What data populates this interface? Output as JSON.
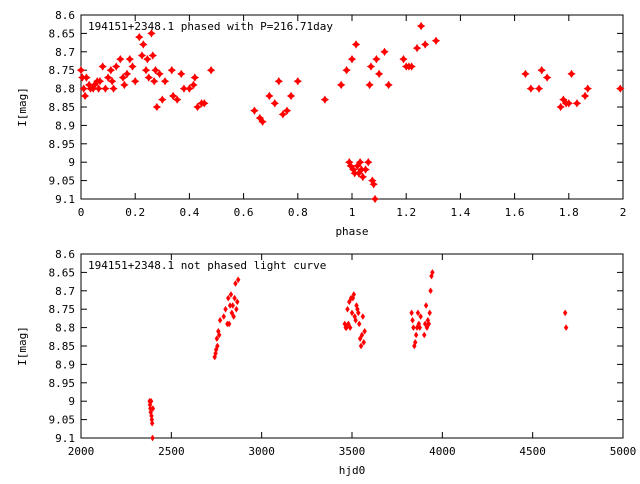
{
  "chart_data": [
    {
      "type": "scatter",
      "title": "194151+2348.1 phased with P=216.71day",
      "xlabel": "phase",
      "ylabel": "I[mag]",
      "xlim": [
        0,
        2
      ],
      "ylim": [
        9.1,
        8.6
      ],
      "y_inverted": true,
      "grid": false,
      "marker_color": "#ff0000",
      "marker": "star",
      "x_ticks": [
        "0",
        "0.2",
        "0.4",
        "0.6",
        "0.8",
        "1",
        "1.2",
        "1.4",
        "1.6",
        "1.8",
        "2"
      ],
      "y_ticks": [
        "8.6",
        "8.65",
        "8.7",
        "8.75",
        "8.8",
        "8.85",
        "8.9",
        "8.95",
        "9",
        "9.05",
        "9.1"
      ],
      "points": [
        [
          0.0,
          8.75
        ],
        [
          0.005,
          8.77
        ],
        [
          0.01,
          8.8
        ],
        [
          0.015,
          8.82
        ],
        [
          0.02,
          8.77
        ],
        [
          0.03,
          8.79
        ],
        [
          0.035,
          8.8
        ],
        [
          0.045,
          8.8
        ],
        [
          0.05,
          8.79
        ],
        [
          0.06,
          8.78
        ],
        [
          0.065,
          8.8
        ],
        [
          0.07,
          8.78
        ],
        [
          0.08,
          8.74
        ],
        [
          0.09,
          8.8
        ],
        [
          0.1,
          8.77
        ],
        [
          0.11,
          8.75
        ],
        [
          0.115,
          8.78
        ],
        [
          0.12,
          8.8
        ],
        [
          0.13,
          8.74
        ],
        [
          0.145,
          8.72
        ],
        [
          0.155,
          8.77
        ],
        [
          0.16,
          8.79
        ],
        [
          0.17,
          8.76
        ],
        [
          0.18,
          8.72
        ],
        [
          0.19,
          8.74
        ],
        [
          0.2,
          8.78
        ],
        [
          0.215,
          8.66
        ],
        [
          0.225,
          8.71
        ],
        [
          0.23,
          8.68
        ],
        [
          0.24,
          8.75
        ],
        [
          0.245,
          8.72
        ],
        [
          0.25,
          8.77
        ],
        [
          0.26,
          8.65
        ],
        [
          0.265,
          8.71
        ],
        [
          0.27,
          8.78
        ],
        [
          0.275,
          8.75
        ],
        [
          0.28,
          8.85
        ],
        [
          0.29,
          8.76
        ],
        [
          0.3,
          8.83
        ],
        [
          0.31,
          8.78
        ],
        [
          0.335,
          8.75
        ],
        [
          0.34,
          8.82
        ],
        [
          0.355,
          8.83
        ],
        [
          0.37,
          8.76
        ],
        [
          0.38,
          8.8
        ],
        [
          0.4,
          8.8
        ],
        [
          0.415,
          8.79
        ],
        [
          0.42,
          8.77
        ],
        [
          0.43,
          8.85
        ],
        [
          0.445,
          8.84
        ],
        [
          0.455,
          8.84
        ],
        [
          0.48,
          8.75
        ],
        [
          0.64,
          8.86
        ],
        [
          0.66,
          8.88
        ],
        [
          0.67,
          8.89
        ],
        [
          0.695,
          8.82
        ],
        [
          0.715,
          8.84
        ],
        [
          0.73,
          8.78
        ],
        [
          0.745,
          8.87
        ],
        [
          0.76,
          8.86
        ],
        [
          0.775,
          8.82
        ],
        [
          0.8,
          8.78
        ],
        [
          0.9,
          8.83
        ],
        [
          0.96,
          8.79
        ],
        [
          0.98,
          8.75
        ],
        [
          0.99,
          9.0
        ],
        [
          0.995,
          9.01
        ],
        [
          1.0,
          8.72
        ],
        [
          1.005,
          9.02
        ],
        [
          1.01,
          9.03
        ],
        [
          1.015,
          8.68
        ],
        [
          1.02,
          9.01
        ],
        [
          1.025,
          9.03
        ],
        [
          1.03,
          9.0
        ],
        [
          1.035,
          9.02
        ],
        [
          1.04,
          9.04
        ],
        [
          1.05,
          9.02
        ],
        [
          1.06,
          9.0
        ],
        [
          1.065,
          8.79
        ],
        [
          1.07,
          8.74
        ],
        [
          1.075,
          9.05
        ],
        [
          1.08,
          9.06
        ],
        [
          1.085,
          9.1
        ],
        [
          1.09,
          8.72
        ],
        [
          1.1,
          8.76
        ],
        [
          1.12,
          8.7
        ],
        [
          1.135,
          8.79
        ],
        [
          1.19,
          8.72
        ],
        [
          1.2,
          8.74
        ],
        [
          1.21,
          8.74
        ],
        [
          1.22,
          8.74
        ],
        [
          1.24,
          8.69
        ],
        [
          1.255,
          8.63
        ],
        [
          1.27,
          8.68
        ],
        [
          1.31,
          8.67
        ],
        [
          1.64,
          8.76
        ],
        [
          1.66,
          8.8
        ],
        [
          1.69,
          8.8
        ],
        [
          1.7,
          8.75
        ],
        [
          1.72,
          8.77
        ],
        [
          1.77,
          8.85
        ],
        [
          1.78,
          8.83
        ],
        [
          1.79,
          8.84
        ],
        [
          1.8,
          8.84
        ],
        [
          1.81,
          8.76
        ],
        [
          1.83,
          8.84
        ],
        [
          1.86,
          8.82
        ],
        [
          1.87,
          8.8
        ],
        [
          1.99,
          8.8
        ]
      ]
    },
    {
      "type": "scatter",
      "title": "194151+2348.1 not phased light curve",
      "xlabel": "hjd0",
      "ylabel": "I[mag]",
      "xlim": [
        2000,
        5000
      ],
      "ylim": [
        9.1,
        8.6
      ],
      "y_inverted": true,
      "grid": false,
      "marker_color": "#ff0000",
      "marker": "diamond",
      "x_ticks": [
        "2000",
        "2500",
        "3000",
        "3500",
        "4000",
        "4500",
        "5000"
      ],
      "y_ticks": [
        "8.6",
        "8.65",
        "8.7",
        "8.75",
        "8.8",
        "8.85",
        "8.9",
        "8.95",
        "9",
        "9.05",
        "9.1"
      ],
      "points": [
        [
          2380,
          9.0
        ],
        [
          2382,
          9.01
        ],
        [
          2384,
          9.02
        ],
        [
          2386,
          9.03
        ],
        [
          2388,
          9.0
        ],
        [
          2390,
          9.04
        ],
        [
          2392,
          9.05
        ],
        [
          2394,
          9.06
        ],
        [
          2396,
          9.1
        ],
        [
          2398,
          9.02
        ],
        [
          2740,
          8.88
        ],
        [
          2745,
          8.87
        ],
        [
          2748,
          8.86
        ],
        [
          2752,
          8.83
        ],
        [
          2755,
          8.85
        ],
        [
          2760,
          8.81
        ],
        [
          2765,
          8.82
        ],
        [
          2770,
          8.78
        ],
        [
          2790,
          8.77
        ],
        [
          2800,
          8.75
        ],
        [
          2810,
          8.79
        ],
        [
          2815,
          8.72
        ],
        [
          2820,
          8.79
        ],
        [
          2825,
          8.74
        ],
        [
          2830,
          8.71
        ],
        [
          2835,
          8.76
        ],
        [
          2840,
          8.74
        ],
        [
          2845,
          8.77
        ],
        [
          2850,
          8.72
        ],
        [
          2855,
          8.68
        ],
        [
          2860,
          8.75
        ],
        [
          2865,
          8.73
        ],
        [
          2870,
          8.67
        ],
        [
          3460,
          8.79
        ],
        [
          3465,
          8.8
        ],
        [
          3470,
          8.8
        ],
        [
          3475,
          8.75
        ],
        [
          3480,
          8.79
        ],
        [
          3485,
          8.73
        ],
        [
          3490,
          8.8
        ],
        [
          3495,
          8.72
        ],
        [
          3500,
          8.76
        ],
        [
          3505,
          8.72
        ],
        [
          3510,
          8.71
        ],
        [
          3515,
          8.77
        ],
        [
          3520,
          8.78
        ],
        [
          3525,
          8.74
        ],
        [
          3530,
          8.75
        ],
        [
          3535,
          8.76
        ],
        [
          3540,
          8.79
        ],
        [
          3545,
          8.83
        ],
        [
          3550,
          8.85
        ],
        [
          3555,
          8.82
        ],
        [
          3560,
          8.77
        ],
        [
          3565,
          8.84
        ],
        [
          3570,
          8.81
        ],
        [
          3830,
          8.76
        ],
        [
          3835,
          8.78
        ],
        [
          3840,
          8.8
        ],
        [
          3845,
          8.85
        ],
        [
          3850,
          8.84
        ],
        [
          3855,
          8.82
        ],
        [
          3860,
          8.8
        ],
        [
          3865,
          8.76
        ],
        [
          3870,
          8.79
        ],
        [
          3875,
          8.8
        ],
        [
          3880,
          8.77
        ],
        [
          3900,
          8.82
        ],
        [
          3905,
          8.79
        ],
        [
          3910,
          8.74
        ],
        [
          3915,
          8.8
        ],
        [
          3920,
          8.78
        ],
        [
          3925,
          8.79
        ],
        [
          3930,
          8.76
        ],
        [
          3935,
          8.7
        ],
        [
          3940,
          8.66
        ],
        [
          3945,
          8.65
        ],
        [
          4680,
          8.76
        ],
        [
          4685,
          8.8
        ]
      ]
    }
  ]
}
